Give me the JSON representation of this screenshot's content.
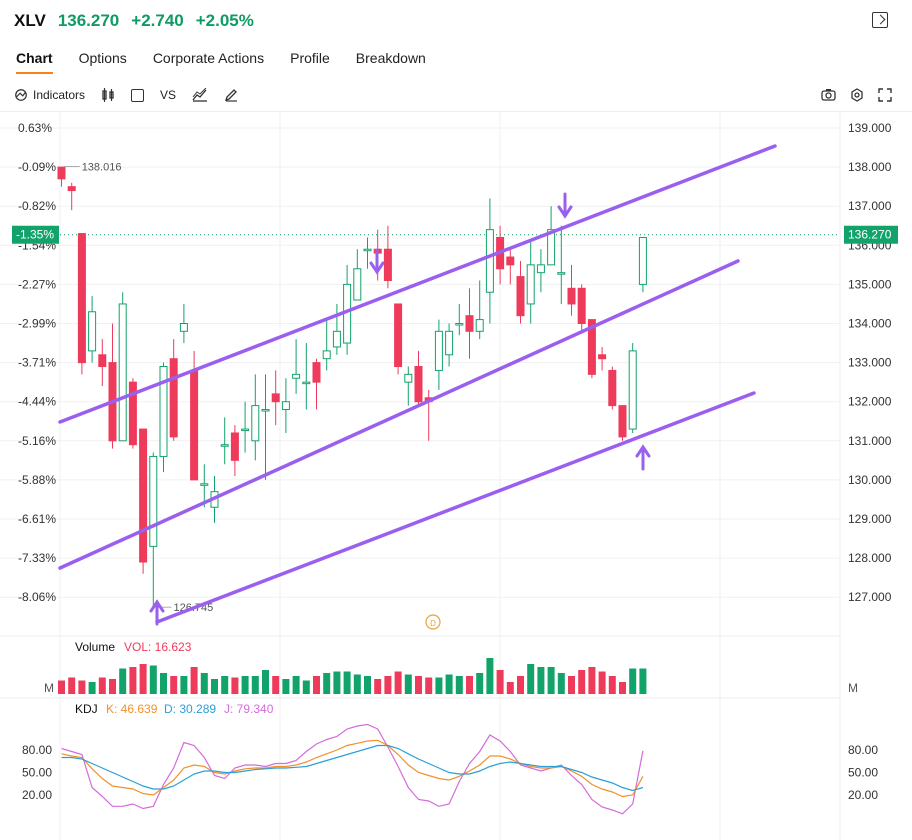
{
  "header": {
    "ticker": "XLV",
    "price": "136.270",
    "change": "+2.740",
    "change_pct": "+2.05%"
  },
  "tabs": [
    {
      "label": "Chart",
      "active": true
    },
    {
      "label": "Options",
      "active": false
    },
    {
      "label": "Corporate Actions",
      "active": false
    },
    {
      "label": "Profile",
      "active": false
    },
    {
      "label": "Breakdown",
      "active": false
    }
  ],
  "toolbar": {
    "indicators_label": "Indicators",
    "vs_label": "VS"
  },
  "colors": {
    "up": "#12a36a",
    "down": "#ee3b5b",
    "channel": "#9b5ff0",
    "kdj_k": "#f0922b",
    "kdj_d": "#2b9fd6",
    "kdj_j": "#d66bdc"
  },
  "chart_data": {
    "type": "candlestick",
    "price_axis": {
      "ticks": [
        "139.000",
        "138.000",
        "137.000",
        "136.000",
        "135.000",
        "134.000",
        "133.000",
        "132.000",
        "131.000",
        "130.000",
        "129.000",
        "128.000",
        "127.000"
      ],
      "ylim": [
        126.2,
        139.3
      ]
    },
    "pct_axis": {
      "ticks": [
        "0.63%",
        "-0.09%",
        "-0.82%",
        "-1.54%",
        "-2.27%",
        "-2.99%",
        "-3.71%",
        "-4.44%",
        "-5.16%",
        "-5.88%",
        "-6.61%",
        "-7.33%",
        "-8.06%"
      ]
    },
    "current_price_label": "136.270",
    "current_pct_label": "-1.35%",
    "high_annotation": "138.016",
    "low_annotation": "126.745",
    "day_marker": "D",
    "candles": [
      [
        138.0,
        137.7,
        138.0,
        137.5
      ],
      [
        137.5,
        137.4,
        137.6,
        136.9
      ],
      [
        136.3,
        133.0,
        136.3,
        132.7
      ],
      [
        133.3,
        134.3,
        134.7,
        133.0
      ],
      [
        133.2,
        132.9,
        133.6,
        132.4
      ],
      [
        133.0,
        131.0,
        134.0,
        130.8
      ],
      [
        131.0,
        134.5,
        134.8,
        131.0
      ],
      [
        132.5,
        130.9,
        132.6,
        130.8
      ],
      [
        131.3,
        127.9,
        131.3,
        127.6
      ],
      [
        128.3,
        130.6,
        130.7,
        126.7
      ],
      [
        130.6,
        132.9,
        133.0,
        130.2
      ],
      [
        133.1,
        131.1,
        133.6,
        131.0
      ],
      [
        133.8,
        134.0,
        134.5,
        133.5
      ],
      [
        132.8,
        130.0,
        133.3,
        130.0
      ],
      [
        129.9,
        129.9,
        130.4,
        129.3
      ],
      [
        129.3,
        129.7,
        130.1,
        128.9
      ],
      [
        130.9,
        130.9,
        131.6,
        130.4
      ],
      [
        131.2,
        130.5,
        131.4,
        130.1
      ],
      [
        131.3,
        131.3,
        132.0,
        130.7
      ],
      [
        131.0,
        131.9,
        132.7,
        130.5
      ],
      [
        131.8,
        131.8,
        132.7,
        130.0
      ],
      [
        132.2,
        132.0,
        132.8,
        131.4
      ],
      [
        131.8,
        132.0,
        132.6,
        131.2
      ],
      [
        132.6,
        132.7,
        133.6,
        132.2
      ],
      [
        132.5,
        132.5,
        133.5,
        131.8
      ],
      [
        133.0,
        132.5,
        133.1,
        131.8
      ],
      [
        133.1,
        133.3,
        134.1,
        132.8
      ],
      [
        133.4,
        133.8,
        134.5,
        133.2
      ],
      [
        133.5,
        135.0,
        135.5,
        133.2
      ],
      [
        134.6,
        135.4,
        135.9,
        134.7
      ],
      [
        135.9,
        135.9,
        136.2,
        135.4
      ],
      [
        135.9,
        135.8,
        136.4,
        135.1
      ],
      [
        135.9,
        135.1,
        136.5,
        134.9
      ],
      [
        134.5,
        132.9,
        134.5,
        132.7
      ],
      [
        132.5,
        132.7,
        132.9,
        131.9
      ],
      [
        132.9,
        132.0,
        133.3,
        131.9
      ],
      [
        132.1,
        132.0,
        132.3,
        131.0
      ],
      [
        132.8,
        133.8,
        134.1,
        132.3
      ],
      [
        133.2,
        133.8,
        134.0,
        132.9
      ],
      [
        134.0,
        134.0,
        134.5,
        133.7
      ],
      [
        134.2,
        133.8,
        134.9,
        133.1
      ],
      [
        133.8,
        134.1,
        135.1,
        133.6
      ],
      [
        134.8,
        136.4,
        137.2,
        134.0
      ],
      [
        136.2,
        135.4,
        136.5,
        135.0
      ],
      [
        135.7,
        135.5,
        135.9,
        135.0
      ],
      [
        135.2,
        134.2,
        135.6,
        134.0
      ],
      [
        134.5,
        135.5,
        136.1,
        134.0
      ],
      [
        135.3,
        135.5,
        135.9,
        134.8
      ],
      [
        135.5,
        136.4,
        137.0,
        135.5
      ],
      [
        135.3,
        135.3,
        136.5,
        134.5
      ],
      [
        134.9,
        134.5,
        135.5,
        134.2
      ],
      [
        134.9,
        134.0,
        135.0,
        133.8
      ],
      [
        134.1,
        132.7,
        134.1,
        132.6
      ],
      [
        133.2,
        133.1,
        133.4,
        132.8
      ],
      [
        132.8,
        131.9,
        132.9,
        131.8
      ],
      [
        131.9,
        131.1,
        131.9,
        131.0
      ],
      [
        131.3,
        133.3,
        133.5,
        131.2
      ],
      [
        135.0,
        136.2,
        136.2,
        134.8
      ]
    ],
    "volume": {
      "label": "Volume",
      "value_label": "VOL: 16.623",
      "axis_label": "M",
      "values": [
        0.45,
        0.55,
        0.45,
        0.4,
        0.55,
        0.5,
        0.85,
        0.9,
        1.0,
        0.95,
        0.7,
        0.6,
        0.6,
        0.9,
        0.7,
        0.5,
        0.6,
        0.55,
        0.6,
        0.6,
        0.8,
        0.6,
        0.5,
        0.6,
        0.45,
        0.6,
        0.7,
        0.75,
        0.75,
        0.65,
        0.6,
        0.5,
        0.6,
        0.75,
        0.65,
        0.6,
        0.55,
        0.55,
        0.65,
        0.6,
        0.6,
        0.7,
        1.2,
        0.8,
        0.4,
        0.6,
        1.0,
        0.9,
        0.9,
        0.7,
        0.6,
        0.8,
        0.9,
        0.75,
        0.6,
        0.4,
        0.85,
        0.85
      ]
    },
    "kdj": {
      "label": "KDJ",
      "k_label": "K: 46.639",
      "d_label": "D: 30.289",
      "j_label": "J: 79.340",
      "ticks": [
        "80.00",
        "50.00",
        "20.00"
      ],
      "k": [
        75,
        72,
        70,
        55,
        42,
        32,
        30,
        28,
        22,
        20,
        30,
        40,
        56,
        60,
        58,
        50,
        48,
        52,
        55,
        56,
        56,
        58,
        58,
        60,
        64,
        70,
        75,
        80,
        86,
        89,
        92,
        93,
        86,
        74,
        60,
        50,
        46,
        42,
        40,
        45,
        52,
        60,
        72,
        72,
        68,
        62,
        58,
        56,
        56,
        58,
        52,
        45,
        34,
        28,
        24,
        18,
        20,
        45
      ],
      "d": [
        70,
        70,
        68,
        62,
        56,
        50,
        44,
        38,
        32,
        28,
        28,
        32,
        40,
        48,
        52,
        52,
        50,
        50,
        52,
        54,
        55,
        56,
        56,
        57,
        58,
        62,
        66,
        70,
        74,
        78,
        82,
        86,
        86,
        82,
        75,
        68,
        62,
        56,
        50,
        48,
        48,
        52,
        58,
        62,
        64,
        62,
        60,
        58,
        58,
        58,
        54,
        50,
        44,
        40,
        36,
        30,
        26,
        30
      ],
      "j": [
        82,
        78,
        74,
        30,
        18,
        5,
        5,
        8,
        2,
        5,
        34,
        56,
        90,
        86,
        70,
        46,
        42,
        56,
        60,
        60,
        58,
        62,
        62,
        66,
        78,
        88,
        94,
        98,
        108,
        112,
        114,
        108,
        84,
        58,
        30,
        14,
        12,
        5,
        8,
        38,
        62,
        78,
        100,
        92,
        78,
        60,
        56,
        52,
        56,
        60,
        46,
        34,
        14,
        4,
        0,
        -5,
        8,
        79
      ]
    }
  }
}
